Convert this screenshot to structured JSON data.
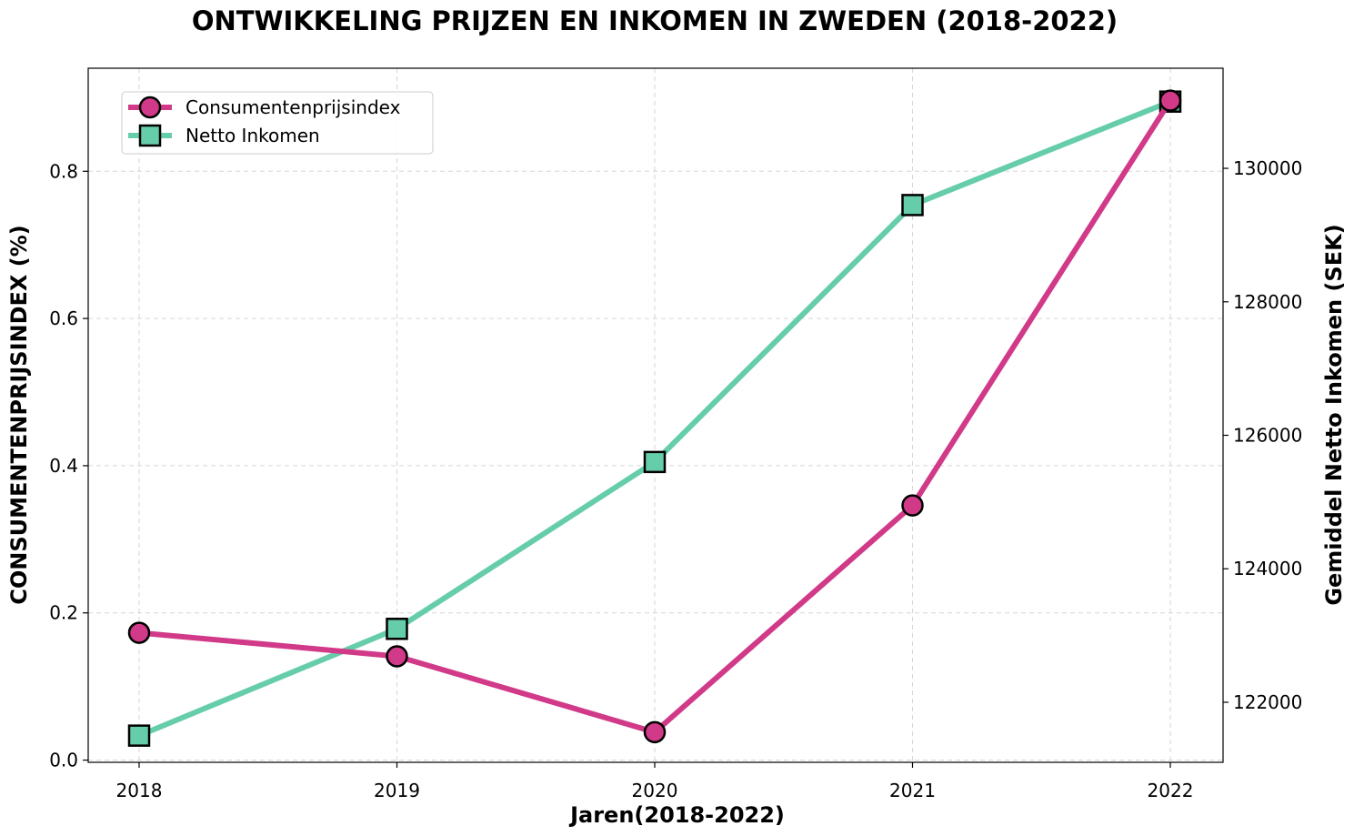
{
  "chart_data": {
    "type": "line",
    "title": "ONTWIKKELING PRIJZEN EN INKOMEN IN ZWEDEN (2018-2022)",
    "xlabel": "Jaren(2018-2022)",
    "ylabel_left": "CONSUMENTENPRIJSINDEX (%)",
    "ylabel_right": "Gemiddel Netto Inkomen (SEK)",
    "categories": [
      "2018",
      "2019",
      "2020",
      "2021",
      "2022"
    ],
    "yticks_left": [
      "0.0",
      "0.2",
      "0.4",
      "0.6",
      "0.8"
    ],
    "yticks_right": [
      "122000",
      "124000",
      "126000",
      "128000",
      "130000"
    ],
    "ylim_left": [
      -0.003,
      0.94
    ],
    "ylim_right": [
      121100,
      131500
    ],
    "grid": true,
    "legend_position": "top-left",
    "series": [
      {
        "name": "Consumentenprijsindex",
        "axis": "left",
        "color": "#d13a88",
        "marker": "circle",
        "values": [
          0.173,
          0.141,
          0.038,
          0.346,
          0.896
        ]
      },
      {
        "name": "Netto Inkomen",
        "axis": "right",
        "color": "#66cdaa",
        "marker": "square",
        "values": [
          121500,
          123100,
          125600,
          129450,
          131000
        ]
      }
    ]
  }
}
